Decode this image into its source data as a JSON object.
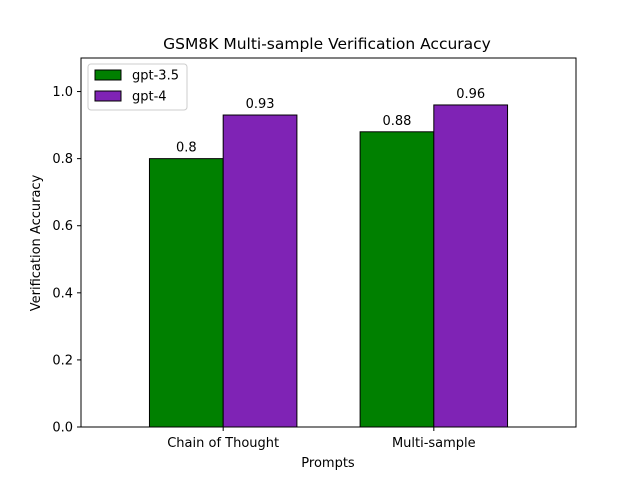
{
  "chart_data": {
    "type": "bar",
    "title": "GSM8K Multi-sample Verification Accuracy",
    "xlabel": "Prompts",
    "ylabel": "Verification Accuracy",
    "categories": [
      "Chain of Thought",
      "Multi-sample"
    ],
    "series": [
      {
        "name": "gpt-3.5",
        "values": [
          0.8,
          0.88
        ],
        "labels": [
          "0.8",
          "0.88"
        ],
        "color": "#008000"
      },
      {
        "name": "gpt-4",
        "values": [
          0.93,
          0.96
        ],
        "labels": [
          "0.93",
          "0.96"
        ],
        "color": "#7f23b5"
      }
    ],
    "ylim": [
      0,
      1.1
    ],
    "yticks": [
      0.0,
      0.2,
      0.4,
      0.6,
      0.8,
      1.0
    ],
    "ytick_labels": [
      "0.0",
      "0.2",
      "0.4",
      "0.6",
      "0.8",
      "1.0"
    ],
    "grid": false,
    "legend_position": "top-left"
  }
}
